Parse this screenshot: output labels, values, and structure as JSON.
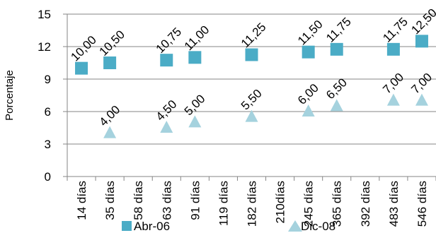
{
  "chart_data": {
    "type": "scatter",
    "title": "",
    "xlabel": "",
    "ylabel": "Porcentaje",
    "ylim": [
      0,
      15
    ],
    "yticks": [
      0,
      3,
      6,
      9,
      12,
      15
    ],
    "grid": "horizontal",
    "legend_position": "bottom",
    "categories": [
      "14 días",
      "35 días",
      "58 días",
      "63 días",
      "91 días",
      "119 días",
      "182 días",
      "210días",
      "245 días",
      "365 días",
      "392 días",
      "483 días",
      "546 días"
    ],
    "series": [
      {
        "name": "Abr-06",
        "marker": "square",
        "color": "#4BACC6",
        "values": [
          10.0,
          10.5,
          null,
          10.75,
          11.0,
          null,
          11.25,
          null,
          11.5,
          11.75,
          null,
          11.75,
          12.5
        ],
        "labels": [
          "10,00",
          "10,50",
          null,
          "10,75",
          "11,00",
          null,
          "11,25",
          null,
          "11,50",
          "11,75",
          null,
          "11,75",
          "12,50"
        ]
      },
      {
        "name": "Dic-08",
        "marker": "triangle",
        "color": "#A5D2DE",
        "values": [
          null,
          4.0,
          null,
          4.5,
          5.0,
          null,
          5.5,
          null,
          6.0,
          6.5,
          null,
          7.0,
          7.0
        ],
        "labels": [
          null,
          "4,00",
          null,
          "4,50",
          "5,00",
          null,
          "5,50",
          null,
          "6,00",
          "6,50",
          null,
          "7,00",
          "7,00"
        ]
      }
    ]
  }
}
